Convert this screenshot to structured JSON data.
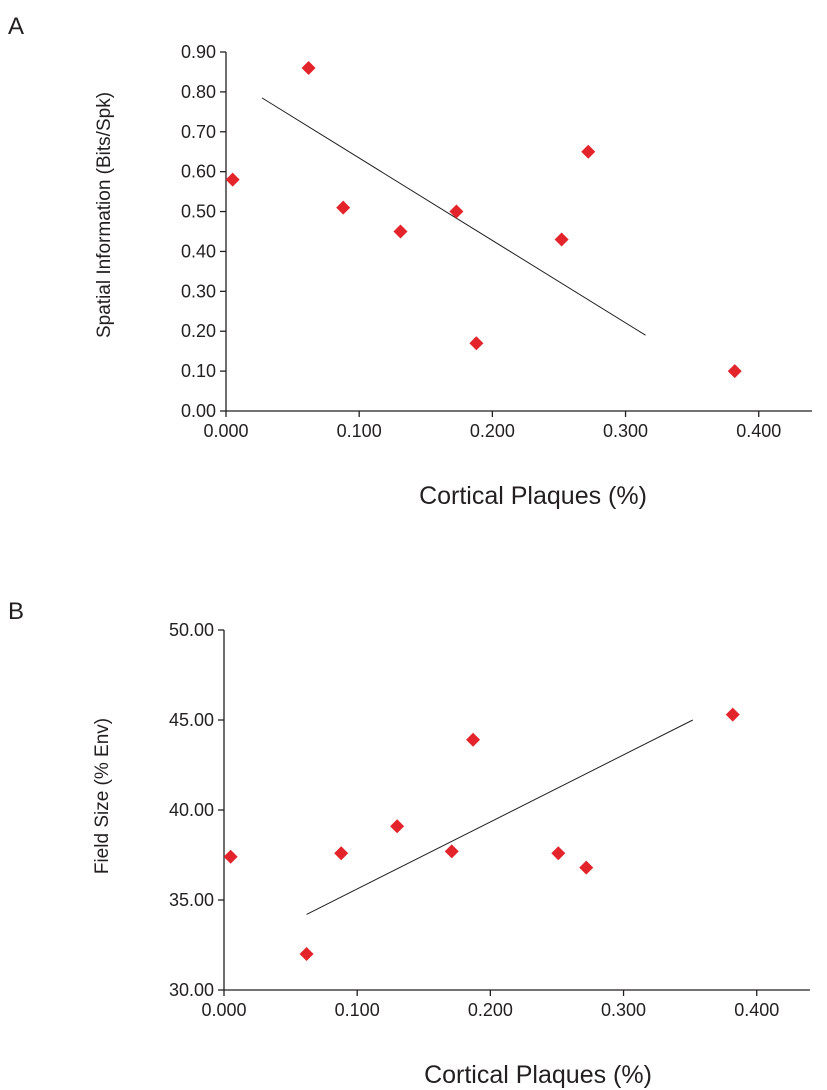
{
  "chart_data": [
    {
      "panel": "A",
      "type": "scatter",
      "title": "",
      "xlabel": "Cortical Plaques (%)",
      "ylabel": "Spatial Information (Bits/Spk)",
      "xlim": [
        0,
        0.44
      ],
      "ylim": [
        0,
        0.9
      ],
      "x_ticks": [
        "0.000",
        "0.100",
        "0.200",
        "0.300",
        "0.400"
      ],
      "y_ticks": [
        "0.00",
        "0.10",
        "0.20",
        "0.30",
        "0.40",
        "0.50",
        "0.60",
        "0.70",
        "0.80",
        "0.90"
      ],
      "marker": "diamond",
      "marker_color": "#e3242b",
      "grid": false,
      "legend": "none",
      "points": [
        {
          "x": 0.005,
          "y": 0.58
        },
        {
          "x": 0.062,
          "y": 0.86
        },
        {
          "x": 0.088,
          "y": 0.51
        },
        {
          "x": 0.131,
          "y": 0.45
        },
        {
          "x": 0.173,
          "y": 0.5
        },
        {
          "x": 0.188,
          "y": 0.17
        },
        {
          "x": 0.252,
          "y": 0.43
        },
        {
          "x": 0.272,
          "y": 0.65
        },
        {
          "x": 0.382,
          "y": 0.1
        }
      ],
      "trendline": {
        "x": [
          0.027,
          0.315
        ],
        "y": [
          0.785,
          0.19
        ]
      }
    },
    {
      "panel": "B",
      "type": "scatter",
      "title": "",
      "xlabel": "Cortical Plaques (%)",
      "ylabel": "Field Size (% Env)",
      "xlim": [
        0,
        0.44
      ],
      "ylim": [
        30,
        50
      ],
      "x_ticks": [
        "0.000",
        "0.100",
        "0.200",
        "0.300",
        "0.400"
      ],
      "y_ticks": [
        "30.00",
        "35.00",
        "40.00",
        "45.00",
        "50.00"
      ],
      "marker": "diamond",
      "marker_color": "#e3242b",
      "grid": false,
      "legend": "none",
      "points": [
        {
          "x": 0.005,
          "y": 37.4
        },
        {
          "x": 0.062,
          "y": 32.0
        },
        {
          "x": 0.088,
          "y": 37.6
        },
        {
          "x": 0.13,
          "y": 39.1
        },
        {
          "x": 0.171,
          "y": 37.7
        },
        {
          "x": 0.187,
          "y": 43.9
        },
        {
          "x": 0.251,
          "y": 37.6
        },
        {
          "x": 0.272,
          "y": 36.8
        },
        {
          "x": 0.382,
          "y": 45.3
        }
      ],
      "trendline": {
        "x": [
          0.062,
          0.352
        ],
        "y": [
          34.2,
          45.0
        ]
      }
    }
  ]
}
